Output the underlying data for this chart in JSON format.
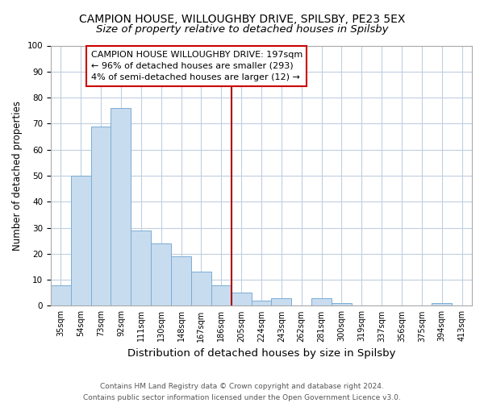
{
  "title": "CAMPION HOUSE, WILLOUGHBY DRIVE, SPILSBY, PE23 5EX",
  "subtitle": "Size of property relative to detached houses in Spilsby",
  "xlabel": "Distribution of detached houses by size in Spilsby",
  "ylabel": "Number of detached properties",
  "categories": [
    "35sqm",
    "54sqm",
    "73sqm",
    "92sqm",
    "111sqm",
    "130sqm",
    "148sqm",
    "167sqm",
    "186sqm",
    "205sqm",
    "224sqm",
    "243sqm",
    "262sqm",
    "281sqm",
    "300sqm",
    "319sqm",
    "337sqm",
    "356sqm",
    "375sqm",
    "394sqm",
    "413sqm"
  ],
  "values": [
    8,
    50,
    69,
    76,
    29,
    24,
    19,
    13,
    8,
    5,
    2,
    3,
    0,
    3,
    1,
    0,
    0,
    0,
    0,
    1,
    0
  ],
  "bar_color": "#c8dcef",
  "bar_edgecolor": "#7aadd4",
  "vline_x_index": 9,
  "vline_color": "#aa0000",
  "annotation_title": "CAMPION HOUSE WILLOUGHBY DRIVE: 197sqm",
  "annotation_line1": "← 96% of detached houses are smaller (293)",
  "annotation_line2": "4% of semi-detached houses are larger (12) →",
  "annotation_box_edgecolor": "#cc0000",
  "footer_line1": "Contains HM Land Registry data © Crown copyright and database right 2024.",
  "footer_line2": "Contains public sector information licensed under the Open Government Licence v3.0.",
  "ylim": [
    0,
    100
  ],
  "title_fontsize": 10,
  "subtitle_fontsize": 9.5,
  "xlabel_fontsize": 9.5,
  "ylabel_fontsize": 8.5,
  "tick_fontsize": 7,
  "annotation_fontsize": 8,
  "footer_fontsize": 6.5
}
